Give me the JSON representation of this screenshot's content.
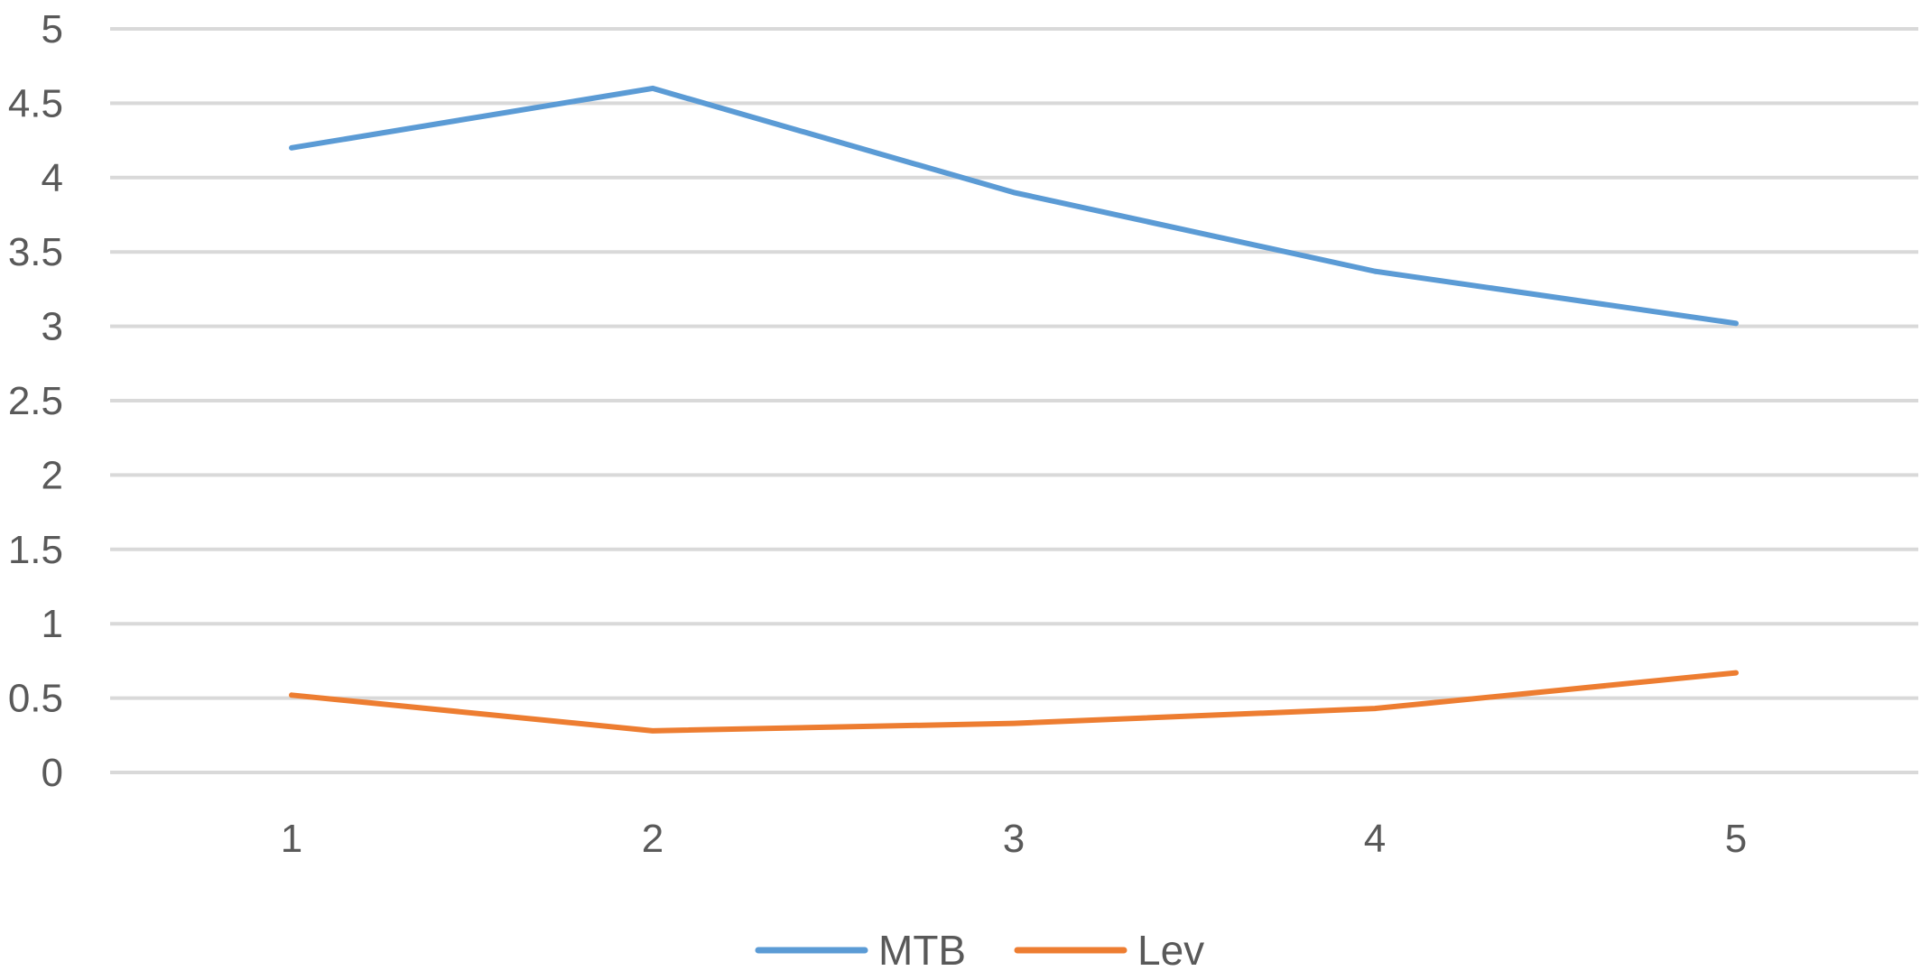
{
  "chart_data": {
    "type": "line",
    "categories": [
      "1",
      "2",
      "3",
      "4",
      "5"
    ],
    "series": [
      {
        "name": "MTB",
        "color": "#5b9bd5",
        "values": [
          4.2,
          4.6,
          3.9,
          3.37,
          3.02
        ]
      },
      {
        "name": "Lev",
        "color": "#ed7d31",
        "values": [
          0.52,
          0.28,
          0.33,
          0.43,
          0.67
        ]
      }
    ],
    "ylim": [
      0,
      5
    ],
    "yticks": [
      "0",
      "0.5",
      "1",
      "1.5",
      "2",
      "2.5",
      "3",
      "3.5",
      "4",
      "4.5",
      "5"
    ],
    "grid": true,
    "legend": "bottom-center"
  }
}
